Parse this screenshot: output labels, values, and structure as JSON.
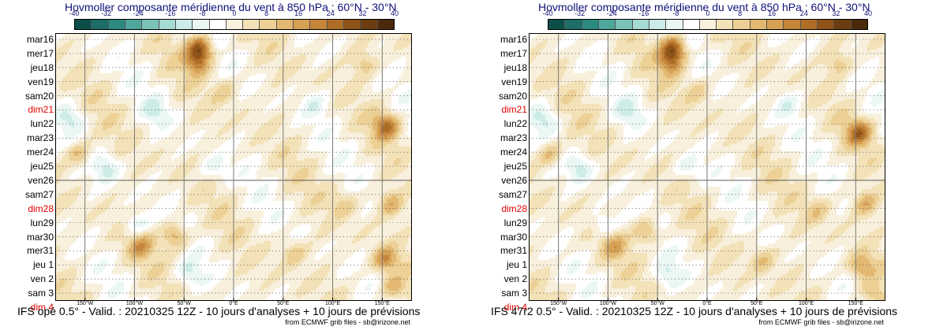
{
  "chart_data": [
    {
      "type": "heatmap",
      "title": "Hovmoller composante méridienne du vent à 850 hPa : 60°N - 30°N",
      "footer": "IFS opé 0.5° - Valid. : 20210325 12Z - 10 jours d'analyses + 10 jours de prévisions",
      "credit": "from ECMWF grib files - sb@irizone.net",
      "colorbar": {
        "ticks": [
          "-40",
          "-32",
          "-24",
          "-16",
          "-8",
          "0",
          "8",
          "16",
          "24",
          "32",
          "40"
        ],
        "colors": [
          "#0b4f48",
          "#1c6e66",
          "#2b8a80",
          "#4fa79c",
          "#7bc3b8",
          "#a6dad2",
          "#cdece7",
          "#eaf7f4",
          "#ffffff",
          "#f8f0dc",
          "#f3e1b7",
          "#ecd095",
          "#e2b872",
          "#d6a055",
          "#c5863c",
          "#ae6d26",
          "#8f5318",
          "#6b3d10",
          "#4a2a0a"
        ]
      },
      "y_labels": [
        "mar16",
        "mer17",
        "jeu18",
        "ven19",
        "sam20",
        "dim21",
        "lun22",
        "mar23",
        "mer24",
        "jeu25",
        "ven26",
        "sam27",
        "dim28",
        "lun29",
        "mar30",
        "mer31",
        "jeu 1",
        "ven 2",
        "sam 3",
        "dim 4"
      ],
      "weekend": [
        false,
        false,
        false,
        false,
        false,
        true,
        false,
        false,
        false,
        false,
        false,
        false,
        true,
        false,
        false,
        false,
        false,
        false,
        false,
        true
      ],
      "analysis_end_label": "ven26",
      "x_labels": [
        "150°W",
        "100°W",
        "50°W",
        "0°E",
        "50°E",
        "100°E",
        "150°E"
      ],
      "xlim": [
        -180,
        180
      ],
      "features": [
        {
          "lon": -35,
          "day": 1.0,
          "v": 28
        },
        {
          "lon": -38,
          "day": 2.0,
          "v": 18
        },
        {
          "lon": 153,
          "day": 6.5,
          "v": 22
        },
        {
          "lon": 157,
          "day": 12.0,
          "v": 14
        },
        {
          "lon": -60,
          "day": 14.3,
          "v": 18
        },
        {
          "lon": -95,
          "day": 15.0,
          "v": 14
        },
        {
          "lon": -100,
          "day": 13.5,
          "v": -10
        },
        {
          "lon": 152,
          "day": 16.0,
          "v": 18
        },
        {
          "lon": 160,
          "day": 18.0,
          "v": 14
        },
        {
          "lon": -158,
          "day": 8.5,
          "v": 14
        },
        {
          "lon": -130,
          "day": 9.5,
          "v": -12
        },
        {
          "lon": -80,
          "day": 5.5,
          "v": -10
        },
        {
          "lon": 130,
          "day": 2.0,
          "v": 10
        },
        {
          "lon": -165,
          "day": 6.0,
          "v": -10
        },
        {
          "lon": 60,
          "day": 15.5,
          "v": 10
        },
        {
          "lon": -20,
          "day": 9.5,
          "v": -8
        },
        {
          "lon": -10,
          "day": 4.0,
          "v": 8
        },
        {
          "lon": 80,
          "day": 5.0,
          "v": -8
        },
        {
          "lon": 110,
          "day": 12.0,
          "v": 8
        },
        {
          "lon": -45,
          "day": 17.0,
          "v": -10
        }
      ]
    },
    {
      "type": "heatmap",
      "title": "Hovmoller composante méridienne du vent à 850 hPa : 60°N - 30°N",
      "footer": "IFS 47r2 0.5° - Valid. : 20210325 12Z - 10 jours d'analyses + 10 jours de prévisions",
      "credit": "from ECMWF grib files - sb@irizone.net",
      "colorbar": {
        "ticks": [
          "-40",
          "-32",
          "-24",
          "-16",
          "-8",
          "0",
          "8",
          "16",
          "24",
          "32",
          "40"
        ],
        "colors": [
          "#0b4f48",
          "#1c6e66",
          "#2b8a80",
          "#4fa79c",
          "#7bc3b8",
          "#a6dad2",
          "#cdece7",
          "#eaf7f4",
          "#ffffff",
          "#f8f0dc",
          "#f3e1b7",
          "#ecd095",
          "#e2b872",
          "#d6a055",
          "#c5863c",
          "#ae6d26",
          "#8f5318",
          "#6b3d10",
          "#4a2a0a"
        ]
      },
      "y_labels": [
        "mar16",
        "mer17",
        "jeu18",
        "ven19",
        "sam20",
        "dim21",
        "lun22",
        "mar23",
        "mer24",
        "jeu25",
        "ven26",
        "sam27",
        "dim28",
        "lun29",
        "mar30",
        "mer31",
        "jeu 1",
        "ven 2",
        "sam 3",
        "dim 4"
      ],
      "weekend": [
        false,
        false,
        false,
        false,
        false,
        true,
        false,
        false,
        false,
        false,
        false,
        false,
        true,
        false,
        false,
        false,
        false,
        false,
        false,
        true
      ],
      "analysis_end_label": "ven26",
      "x_labels": [
        "150°W",
        "100°W",
        "50°W",
        "0°E",
        "50°E",
        "100°E",
        "150°E"
      ],
      "xlim": [
        -180,
        180
      ],
      "features": [
        {
          "lon": -35,
          "day": 1.0,
          "v": 28
        },
        {
          "lon": -38,
          "day": 2.0,
          "v": 18
        },
        {
          "lon": 152,
          "day": 7.0,
          "v": 22
        },
        {
          "lon": 158,
          "day": 12.0,
          "v": 14
        },
        {
          "lon": -62,
          "day": 14.0,
          "v": 16
        },
        {
          "lon": -95,
          "day": 15.0,
          "v": 12
        },
        {
          "lon": -105,
          "day": 13.5,
          "v": -10
        },
        {
          "lon": 155,
          "day": 16.5,
          "v": 16
        },
        {
          "lon": 165,
          "day": 18.5,
          "v": 12
        },
        {
          "lon": -160,
          "day": 8.5,
          "v": 14
        },
        {
          "lon": -130,
          "day": 9.5,
          "v": -12
        },
        {
          "lon": -80,
          "day": 5.5,
          "v": -10
        },
        {
          "lon": 130,
          "day": 2.0,
          "v": 10
        },
        {
          "lon": -165,
          "day": 6.0,
          "v": -10
        },
        {
          "lon": 55,
          "day": 16.0,
          "v": 10
        },
        {
          "lon": -20,
          "day": 9.5,
          "v": -8
        },
        {
          "lon": -10,
          "day": 4.0,
          "v": 8
        },
        {
          "lon": 80,
          "day": 5.0,
          "v": -8
        },
        {
          "lon": 110,
          "day": 12.5,
          "v": 8
        },
        {
          "lon": -40,
          "day": 17.0,
          "v": -10
        }
      ]
    }
  ]
}
